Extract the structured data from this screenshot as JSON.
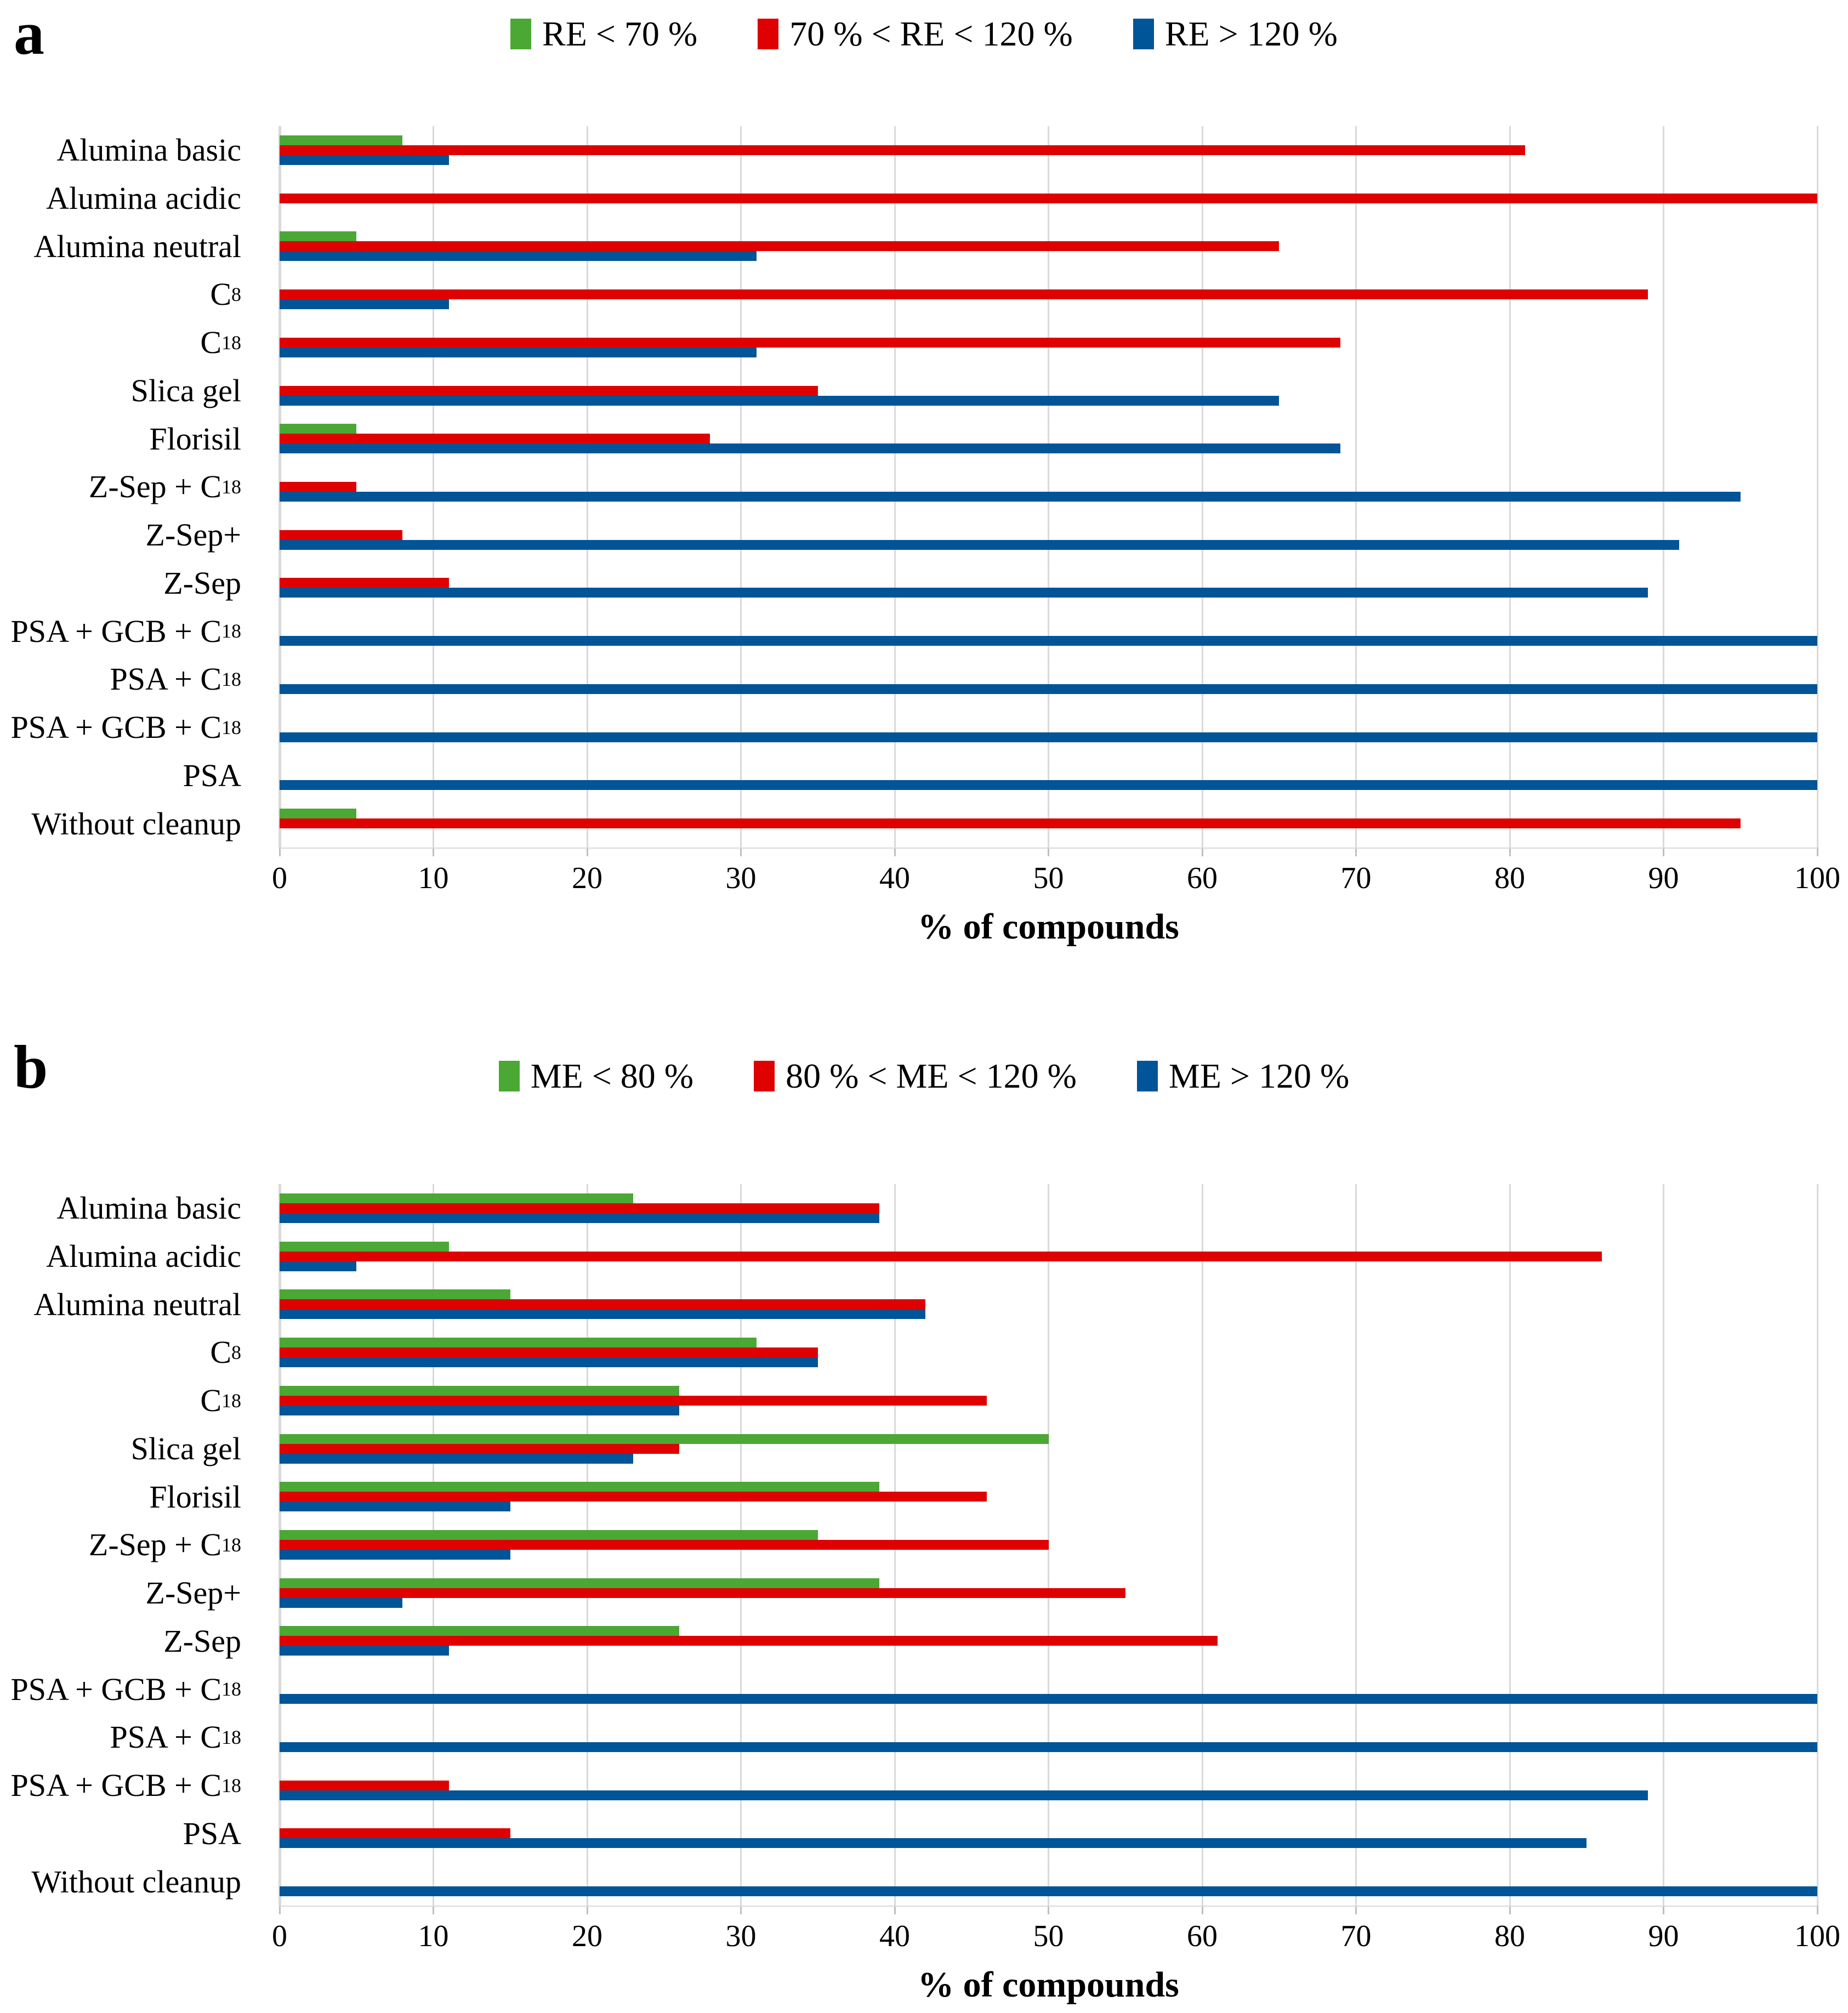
{
  "figure": {
    "panel_letters": [
      "a",
      "b"
    ],
    "background": "#ffffff"
  },
  "colors": {
    "green": "#4BA834",
    "red": "#DF0000",
    "blue": "#005498",
    "gridline": "#D9D9D9",
    "tickmark": "#BFBFBF",
    "text": "#000000"
  },
  "chart_data": [
    {
      "type": "bar",
      "orientation": "horizontal",
      "panel_letter": "a",
      "xlabel": "% of compounds",
      "xlim": [
        0,
        100
      ],
      "x_ticks": [
        0,
        10,
        20,
        30,
        40,
        50,
        60,
        70,
        80,
        90,
        100
      ],
      "grid": "vertical",
      "legend_position": "top",
      "categories": [
        "Alumina basic",
        "Alumina acidic",
        "Alumina neutral",
        "C8",
        "C18",
        "Slica gel",
        "Florisil",
        "Z-Sep + C18",
        "Z-Sep+",
        "Z-Sep",
        "PSA + GCB + C18",
        "PSA + C18",
        "PSA + GCB + C18",
        "PSA",
        "Without cleanup"
      ],
      "categories_rich": [
        {
          "pre": "Alumina basic",
          "sub": ""
        },
        {
          "pre": "Alumina acidic",
          "sub": ""
        },
        {
          "pre": "Alumina neutral",
          "sub": ""
        },
        {
          "pre": "C",
          "sub": "8"
        },
        {
          "pre": "C",
          "sub": "18"
        },
        {
          "pre": "Slica gel",
          "sub": ""
        },
        {
          "pre": "Florisil",
          "sub": ""
        },
        {
          "pre": "Z-Sep + C",
          "sub": "18"
        },
        {
          "pre": "Z-Sep+",
          "sub": ""
        },
        {
          "pre": "Z-Sep",
          "sub": ""
        },
        {
          "pre": "PSA + GCB + C",
          "sub": "18"
        },
        {
          "pre": "PSA + C",
          "sub": "18"
        },
        {
          "pre": "PSA + GCB + C",
          "sub": "18"
        },
        {
          "pre": "PSA",
          "sub": ""
        },
        {
          "pre": "Without cleanup",
          "sub": ""
        }
      ],
      "series": [
        {
          "name": "RE < 70 %",
          "color": "#4BA834",
          "values": [
            8,
            0,
            5,
            0,
            0,
            0,
            5,
            0,
            0,
            0,
            0,
            0,
            0,
            0,
            5
          ]
        },
        {
          "name": "70 % < RE < 120 %",
          "color": "#DF0000",
          "values": [
            81,
            100,
            65,
            89,
            69,
            35,
            28,
            5,
            8,
            11,
            0,
            0,
            0,
            0,
            95
          ]
        },
        {
          "name": "RE > 120 %",
          "color": "#005498",
          "values": [
            11,
            0,
            31,
            11,
            31,
            65,
            69,
            95,
            91,
            89,
            100,
            100,
            100,
            100,
            0
          ]
        }
      ]
    },
    {
      "type": "bar",
      "orientation": "horizontal",
      "panel_letter": "b",
      "xlabel": "% of compounds",
      "xlim": [
        0,
        100
      ],
      "x_ticks": [
        0,
        10,
        20,
        30,
        40,
        50,
        60,
        70,
        80,
        90,
        100
      ],
      "grid": "vertical",
      "legend_position": "top",
      "categories": [
        "Alumina basic",
        "Alumina acidic",
        "Alumina neutral",
        "C8",
        "C18",
        "Slica gel",
        "Florisil",
        "Z-Sep + C18",
        "Z-Sep+",
        "Z-Sep",
        "PSA + GCB + C18",
        "PSA + C18",
        "PSA + GCB + C18",
        "PSA",
        "Without cleanup"
      ],
      "categories_rich": [
        {
          "pre": "Alumina basic",
          "sub": ""
        },
        {
          "pre": "Alumina acidic",
          "sub": ""
        },
        {
          "pre": "Alumina neutral",
          "sub": ""
        },
        {
          "pre": "C",
          "sub": "8"
        },
        {
          "pre": "C",
          "sub": "18"
        },
        {
          "pre": "Slica gel",
          "sub": ""
        },
        {
          "pre": "Florisil",
          "sub": ""
        },
        {
          "pre": "Z-Sep + C",
          "sub": "18"
        },
        {
          "pre": "Z-Sep+",
          "sub": ""
        },
        {
          "pre": "Z-Sep",
          "sub": ""
        },
        {
          "pre": "PSA + GCB + C",
          "sub": "18"
        },
        {
          "pre": "PSA + C",
          "sub": "18"
        },
        {
          "pre": "PSA + GCB + C",
          "sub": "18"
        },
        {
          "pre": "PSA",
          "sub": ""
        },
        {
          "pre": "Without cleanup",
          "sub": ""
        }
      ],
      "series": [
        {
          "name": "ME < 80 %",
          "color": "#4BA834",
          "values": [
            23,
            11,
            15,
            31,
            26,
            50,
            39,
            35,
            39,
            26,
            0,
            0,
            0,
            0,
            0
          ]
        },
        {
          "name": "80 % < ME < 120 %",
          "color": "#DF0000",
          "values": [
            39,
            86,
            42,
            35,
            46,
            26,
            46,
            50,
            55,
            61,
            0,
            0,
            11,
            15,
            0
          ]
        },
        {
          "name": "ME > 120 %",
          "color": "#005498",
          "values": [
            39,
            5,
            42,
            35,
            26,
            23,
            15,
            15,
            8,
            11,
            100,
            100,
            89,
            85,
            100
          ]
        }
      ]
    }
  ]
}
